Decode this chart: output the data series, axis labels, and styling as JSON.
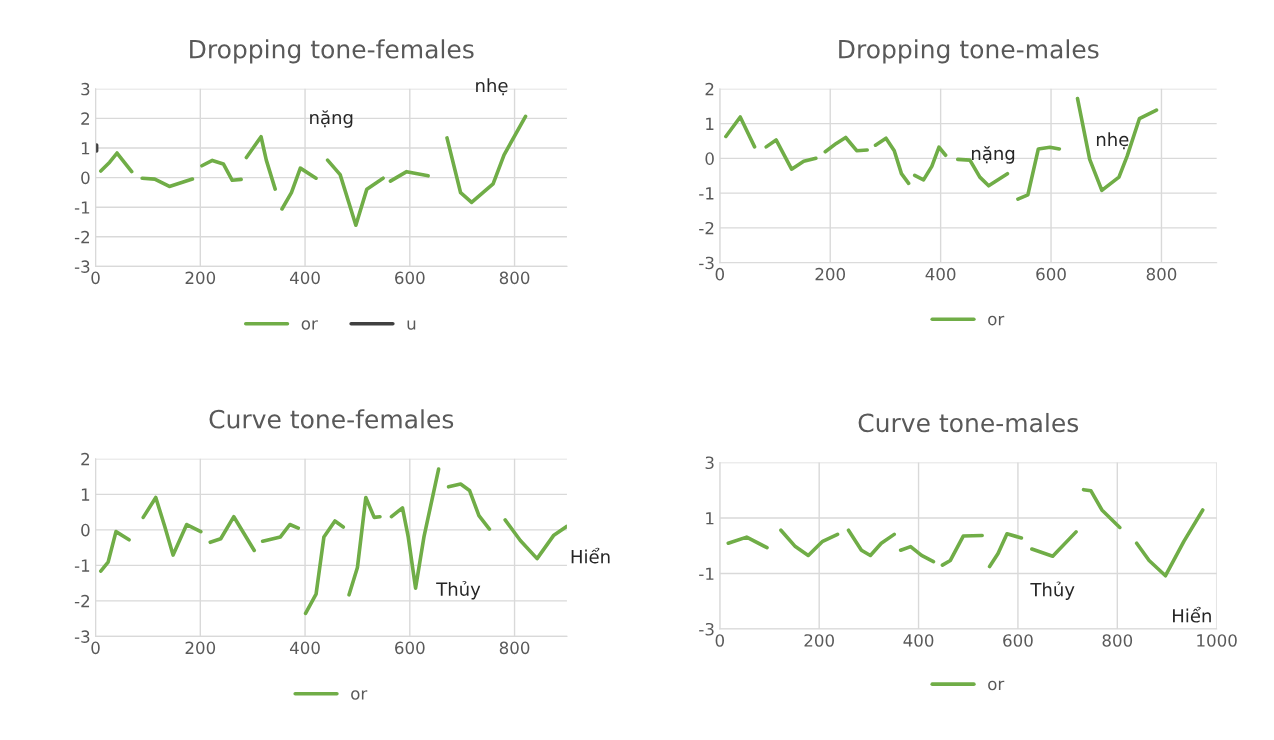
{
  "chart_data": [
    {
      "type": "line",
      "title": "Dropping tone-females",
      "xlim": [
        0,
        900
      ],
      "xticks": [
        0,
        200,
        400,
        600,
        800
      ],
      "ylim": [
        -3,
        3
      ],
      "yticks": [
        -3,
        -2,
        -1,
        0,
        1,
        2,
        3
      ],
      "grid": true,
      "legend": "bottom",
      "series": [
        {
          "name": "or",
          "color": "#70ad47",
          "x": [
            10,
            27,
            41,
            69,
            null,
            89,
            113,
            141,
            185,
            null,
            203,
            223,
            244,
            261,
            278,
            null,
            288,
            316,
            326,
            343,
            null,
            356,
            374,
            391,
            421,
            null,
            443,
            467,
            497,
            518,
            549,
            null,
            563,
            594,
            635,
            null,
            671,
            697,
            718,
            759,
            780,
            821
          ],
          "values": [
            0.22,
            0.52,
            0.83,
            0.2,
            null,
            -0.02,
            -0.05,
            -0.3,
            -0.05,
            null,
            0.4,
            0.58,
            0.46,
            -0.09,
            -0.06,
            null,
            0.68,
            1.38,
            0.59,
            -0.39,
            null,
            -1.06,
            -0.51,
            0.32,
            -0.02,
            null,
            0.59,
            0.1,
            -1.61,
            -0.39,
            -0.02,
            null,
            -0.12,
            0.2,
            0.06,
            null,
            1.34,
            -0.51,
            -0.84,
            -0.21,
            0.77,
            2.07
          ]
        },
        {
          "name": "u",
          "color": "#404040",
          "x": [
            2,
            2
          ],
          "values": [
            0.9,
            1.1
          ]
        }
      ],
      "annotations": [
        "nặng",
        "nhẹ"
      ]
    },
    {
      "type": "line",
      "title": "Dropping tone-males",
      "xlim": [
        0,
        900
      ],
      "xticks": [
        0,
        200,
        400,
        600,
        800
      ],
      "ylim": [
        -3,
        2
      ],
      "yticks": [
        -3,
        -2,
        -1,
        0,
        1,
        2
      ],
      "grid": true,
      "legend": "bottom",
      "series": [
        {
          "name": "or",
          "color": "#70ad47",
          "x": [
            11,
            37,
            63,
            null,
            84,
            102,
            130,
            152,
            174,
            null,
            191,
            211,
            228,
            248,
            267,
            null,
            282,
            301,
            316,
            329,
            342,
            null,
            353,
            369,
            384,
            397,
            409,
            null,
            431,
            453,
            471,
            487,
            521,
            null,
            540,
            558,
            577,
            598,
            615,
            null,
            648,
            670,
            692,
            723,
            738,
            760,
            791
          ],
          "values": [
            0.63,
            1.19,
            0.33,
            null,
            0.33,
            0.53,
            -0.31,
            -0.08,
            0,
            null,
            0.19,
            0.43,
            0.6,
            0.22,
            0.24,
            null,
            0.38,
            0.58,
            0.22,
            -0.44,
            -0.72,
            null,
            -0.49,
            -0.62,
            -0.23,
            0.32,
            0.09,
            null,
            -0.03,
            -0.05,
            -0.54,
            -0.79,
            -0.44,
            null,
            -1.17,
            -1.05,
            0.27,
            0.32,
            0.27,
            null,
            1.72,
            -0.03,
            -0.92,
            -0.54,
            0.07,
            1.14,
            1.39
          ]
        }
      ],
      "annotations": [
        "nặng",
        "nhẹ"
      ]
    },
    {
      "type": "line",
      "title": "Curve tone-females",
      "xlim": [
        0,
        900
      ],
      "xticks": [
        0,
        200,
        400,
        600,
        800
      ],
      "ylim": [
        -3,
        2
      ],
      "yticks": [
        -3,
        -2,
        -1,
        0,
        1,
        2
      ],
      "grid": true,
      "legend": "bottom",
      "series": [
        {
          "name": "or",
          "color": "#70ad47",
          "x": [
            10,
            24,
            39,
            64,
            null,
            91,
            115,
            132,
            148,
            174,
            201,
            null,
            219,
            239,
            264,
            303,
            null,
            319,
            353,
            371,
            387,
            null,
            401,
            421,
            436,
            457,
            473,
            null,
            484,
            500,
            516,
            532,
            543,
            null,
            565,
            586,
            597,
            611,
            627,
            655,
            null,
            674,
            697,
            714,
            732,
            752,
            null,
            782,
            811,
            843,
            875,
            900
          ],
          "values": [
            -1.16,
            -0.91,
            -0.05,
            -0.28,
            null,
            0.35,
            0.91,
            0.1,
            -0.71,
            0.15,
            -0.05,
            null,
            -0.35,
            -0.25,
            0.37,
            -0.58,
            null,
            -0.32,
            -0.2,
            0.15,
            0.05,
            null,
            -2.35,
            -1.81,
            -0.2,
            0.25,
            0.08,
            null,
            -1.83,
            -1.06,
            0.91,
            0.35,
            0.37,
            null,
            0.37,
            0.62,
            -0.2,
            -1.64,
            -0.2,
            1.71,
            null,
            1.21,
            1.29,
            1.11,
            0.4,
            0.02,
            null,
            0.28,
            -0.3,
            -0.81,
            -0.15,
            0.1
          ]
        }
      ],
      "annotations": [
        "Thủy",
        "Hiển"
      ]
    },
    {
      "type": "line",
      "title": "Curve tone-males",
      "xlim": [
        0,
        1000
      ],
      "xticks": [
        0,
        200,
        400,
        600,
        800,
        1000
      ],
      "ylim": [
        -3,
        3
      ],
      "yticks": [
        -3,
        -1,
        1,
        3
      ],
      "grid": true,
      "legend": "bottom",
      "series": [
        {
          "name": "or",
          "color": "#70ad47",
          "x": [
            17,
            54,
            95,
            null,
            123,
            152,
            178,
            207,
            237,
            null,
            259,
            285,
            303,
            325,
            351,
            null,
            364,
            384,
            406,
            430,
            null,
            448,
            464,
            490,
            528,
            null,
            543,
            560,
            578,
            607,
            null,
            628,
            670,
            717,
            null,
            732,
            747,
            769,
            805,
            null,
            839,
            864,
            897,
            934,
            972
          ],
          "values": [
            0.09,
            0.31,
            -0.07,
            null,
            0.56,
            -0.03,
            -0.35,
            0.16,
            0.41,
            null,
            0.56,
            -0.16,
            -0.35,
            0.09,
            0.41,
            null,
            -0.16,
            -0.03,
            -0.35,
            -0.57,
            null,
            -0.7,
            -0.53,
            0.35,
            0.37,
            null,
            -0.75,
            -0.28,
            0.43,
            0.28,
            null,
            -0.12,
            -0.38,
            0.5,
            null,
            2.02,
            1.98,
            1.29,
            0.66,
            null,
            0.09,
            -0.53,
            -1.08,
            0.16,
            1.29
          ]
        }
      ],
      "annotations": [
        "Thủy",
        "Hiển"
      ]
    }
  ]
}
